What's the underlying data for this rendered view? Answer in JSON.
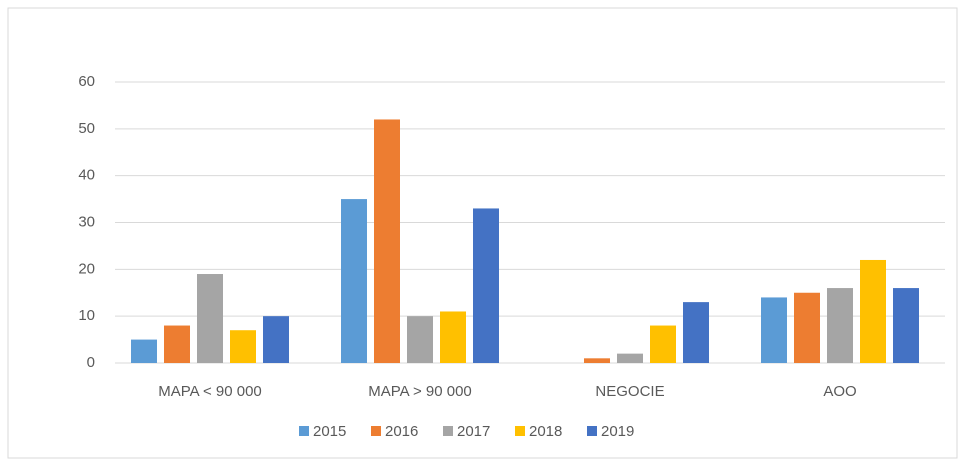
{
  "chart_data": {
    "type": "bar",
    "categories": [
      "MAPA < 90 000",
      "MAPA > 90 000",
      "NEGOCIE",
      "AOO"
    ],
    "series": [
      {
        "name": "2015",
        "color": "#5b9bd5",
        "values": [
          5,
          35,
          0,
          14
        ]
      },
      {
        "name": "2016",
        "color": "#ed7d31",
        "values": [
          8,
          52,
          1,
          15
        ]
      },
      {
        "name": "2017",
        "color": "#a5a5a5",
        "values": [
          19,
          10,
          2,
          16
        ]
      },
      {
        "name": "2018",
        "color": "#ffc000",
        "values": [
          7,
          11,
          8,
          22
        ]
      },
      {
        "name": "2019",
        "color": "#4472c4",
        "values": [
          10,
          33,
          13,
          16
        ]
      }
    ],
    "ylim": [
      0,
      60
    ],
    "yticks": [
      0,
      10,
      20,
      30,
      40,
      50,
      60
    ],
    "grid": true,
    "legend": "bottom"
  }
}
